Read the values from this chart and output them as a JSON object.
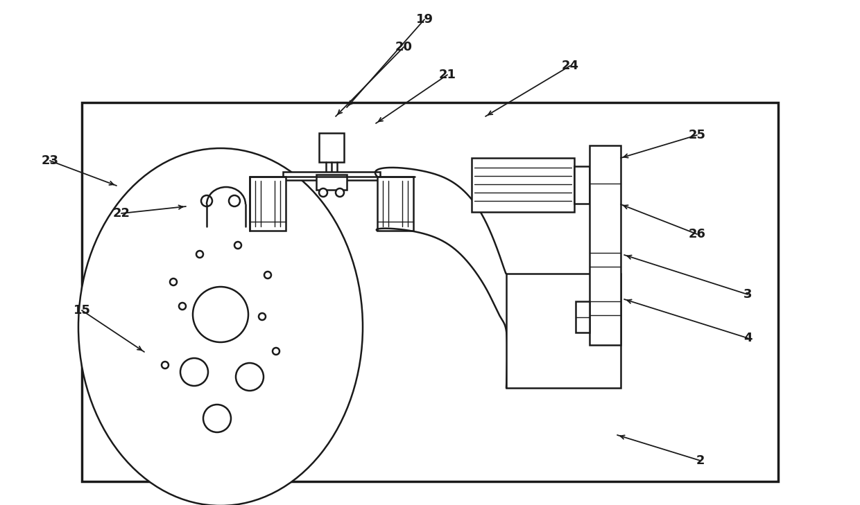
{
  "bg_color": "#ffffff",
  "line_color": "#1a1a1a",
  "lw": 1.8,
  "lw_thick": 2.5,
  "lw_thin": 1.0,
  "lw_ann": 1.3,
  "label_fs": 13,
  "fig_width": 12.4,
  "fig_height": 7.29,
  "annotations": [
    [
      "19",
      612,
      28,
      500,
      155
    ],
    [
      "20",
      582,
      68,
      484,
      168
    ],
    [
      "21",
      645,
      108,
      542,
      178
    ],
    [
      "24",
      822,
      95,
      700,
      168
    ],
    [
      "25",
      1005,
      195,
      895,
      228
    ],
    [
      "26",
      1005,
      338,
      895,
      295
    ],
    [
      "3",
      1078,
      425,
      900,
      368
    ],
    [
      "4",
      1078,
      488,
      900,
      432
    ],
    [
      "2",
      1010,
      665,
      890,
      628
    ],
    [
      "23",
      72,
      232,
      168,
      268
    ],
    [
      "22",
      175,
      308,
      268,
      298
    ],
    [
      "15",
      118,
      448,
      208,
      508
    ]
  ]
}
